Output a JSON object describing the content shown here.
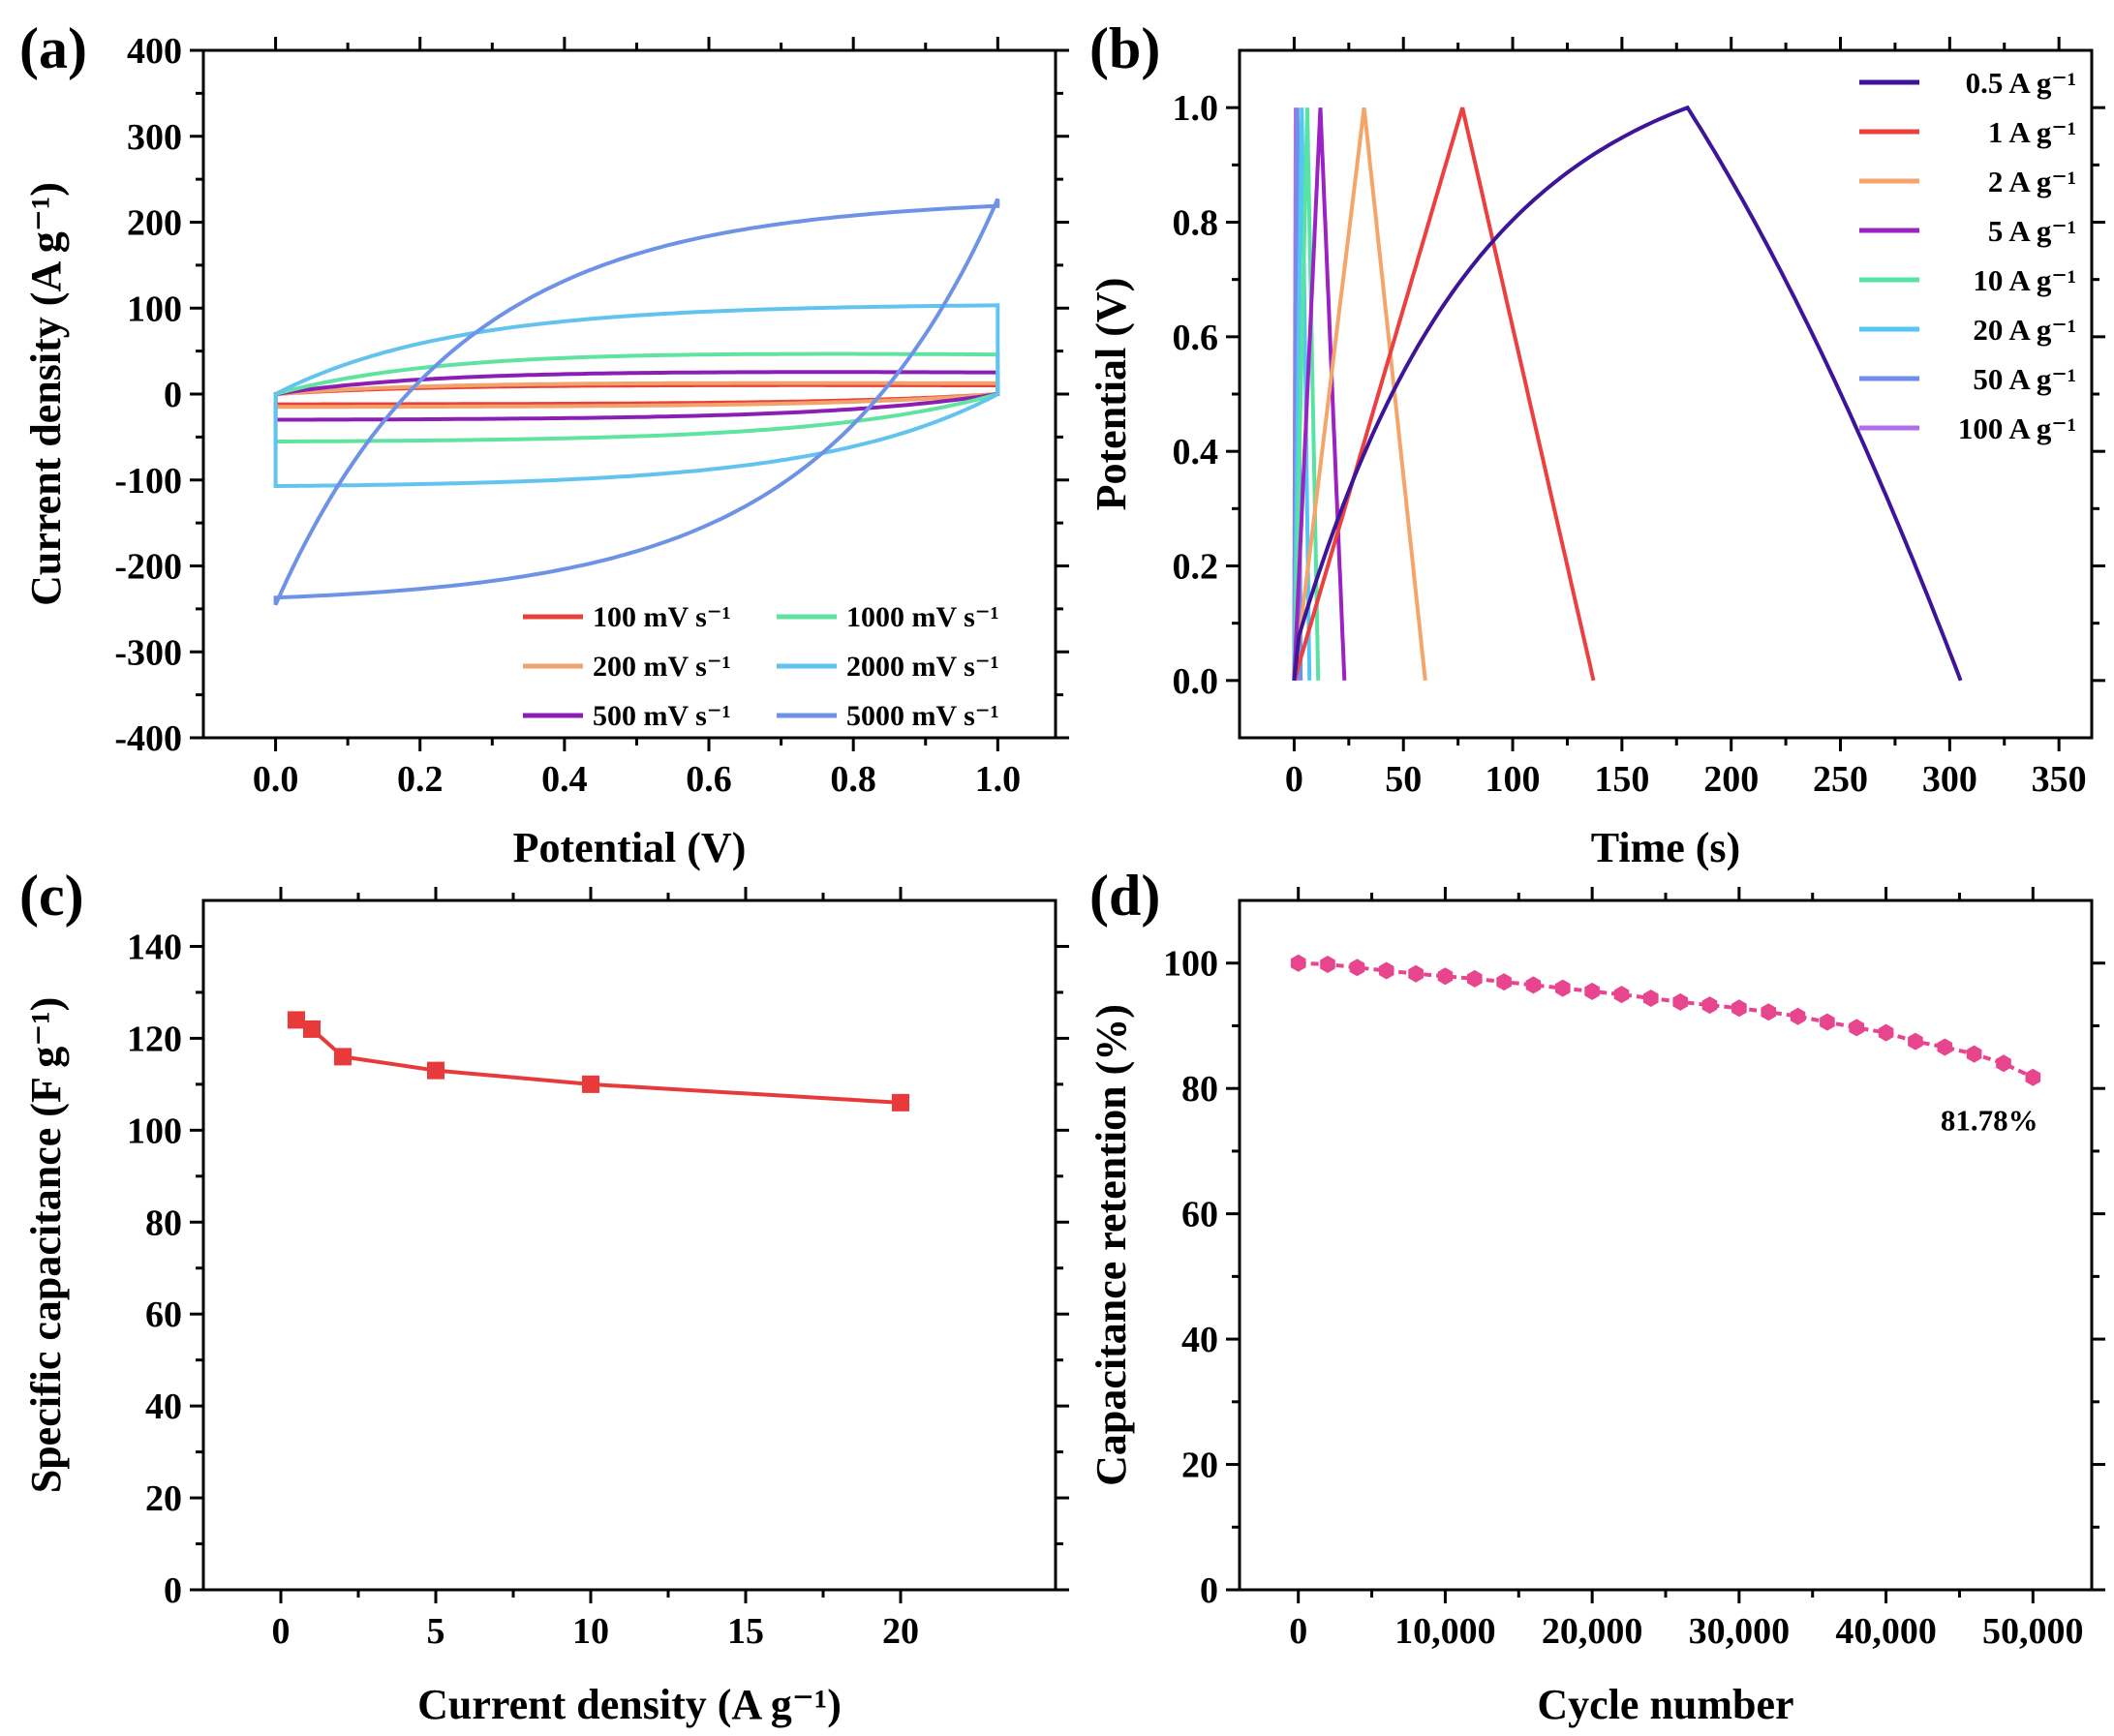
{
  "chart_data": [
    {
      "panel": "(a)",
      "type": "line",
      "subtype": "cyclic voltammetry",
      "xlabel": "Potential (V)",
      "ylabel": "Current density (A g⁻¹)",
      "xlim": [
        -0.1,
        1.08
      ],
      "ylim": [
        -400,
        400
      ],
      "xticks": [
        "0.0",
        "0.2",
        "0.4",
        "0.6",
        "0.8",
        "1.0"
      ],
      "yticks": [
        "400",
        "300",
        "200",
        "100",
        "0",
        "-100",
        "-200",
        "-300",
        "-400"
      ],
      "legend_position": "bottom-right",
      "series": [
        {
          "name": "100 mV s⁻¹",
          "color": "#e8403a",
          "peak_current": 12
        },
        {
          "name": "200 mV s⁻¹",
          "color": "#f0a36b",
          "peak_current": 15
        },
        {
          "name": "500 mV s⁻¹",
          "color": "#8b1fb5",
          "peak_current": 30
        },
        {
          "name": "1000 mV s⁻¹",
          "color": "#5fe3a1",
          "peak_current": 55
        },
        {
          "name": "2000 mV s⁻¹",
          "color": "#62c3ee",
          "peak_current": 105
        },
        {
          "name": "5000 mV s⁻¹",
          "color": "#6e93e6",
          "peak_current": 227
        }
      ]
    },
    {
      "panel": "(b)",
      "type": "line",
      "subtype": "galvanostatic charge-discharge",
      "xlabel": "Time (s)",
      "ylabel": "Potential (V)",
      "xlim": [
        -25,
        365
      ],
      "ylim": [
        -0.1,
        1.1
      ],
      "xticks": [
        "0",
        "50",
        "100",
        "150",
        "200",
        "250",
        "300",
        "350"
      ],
      "yticks": [
        "1.0",
        "0.8",
        "0.6",
        "0.4",
        "0.2",
        "0.0"
      ],
      "legend_position": "top-right",
      "series": [
        {
          "name": "0.5 A g⁻¹",
          "color": "#3d1599",
          "t_charge": 180,
          "t_end": 305
        },
        {
          "name": "1 A g⁻¹",
          "color": "#ec3f3f",
          "t_charge": 77,
          "t_end": 137
        },
        {
          "name": "2 A g⁻¹",
          "color": "#f5a56a",
          "t_charge": 32,
          "t_end": 60
        },
        {
          "name": "5 A g⁻¹",
          "color": "#9c22c4",
          "t_charge": 12,
          "t_end": 23
        },
        {
          "name": "10 A g⁻¹",
          "color": "#56e3a4",
          "t_charge": 6,
          "t_end": 11
        },
        {
          "name": "20 A g⁻¹",
          "color": "#55c6f2",
          "t_charge": 3.5,
          "t_end": 7
        },
        {
          "name": "50 A g⁻¹",
          "color": "#6e8ee8",
          "t_charge": 1.5,
          "t_end": 3
        },
        {
          "name": "100 A g⁻¹",
          "color": "#b06ee8",
          "t_charge": 0.7,
          "t_end": 1.4
        }
      ]
    },
    {
      "panel": "(c)",
      "type": "line",
      "xlabel": "Current density (A g⁻¹)",
      "ylabel": "Specific capacitance (F g⁻¹)",
      "xlim": [
        -2.5,
        25
      ],
      "ylim": [
        0,
        150
      ],
      "xticks": [
        "0",
        "5",
        "10",
        "15",
        "20"
      ],
      "yticks": [
        "140",
        "120",
        "100",
        "80",
        "60",
        "40",
        "20",
        "0"
      ],
      "color": "#e83a3a",
      "x": [
        0.5,
        1,
        2,
        5,
        10,
        20
      ],
      "y": [
        124,
        122,
        116,
        113,
        110,
        106
      ]
    },
    {
      "panel": "(d)",
      "type": "line",
      "xlabel": "Cycle number",
      "ylabel": "Capacitance retention (%)",
      "xlim": [
        -4000,
        54000
      ],
      "ylim": [
        0,
        110
      ],
      "xticks": [
        "0",
        "10,000",
        "20,000",
        "30,000",
        "40,000",
        "50,000"
      ],
      "yticks": [
        "100",
        "80",
        "60",
        "40",
        "20",
        "0"
      ],
      "color": "#e8458f",
      "annotation": "81.78%",
      "x": [
        0,
        2000,
        4000,
        6000,
        8000,
        10000,
        12000,
        14000,
        16000,
        18000,
        20000,
        22000,
        24000,
        26000,
        28000,
        30000,
        32000,
        34000,
        36000,
        38000,
        40000,
        42000,
        44000,
        46000,
        48000,
        50000
      ],
      "y": [
        100,
        99.8,
        99.3,
        98.8,
        98.3,
        97.9,
        97.5,
        97.0,
        96.5,
        96.0,
        95.5,
        95.0,
        94.4,
        93.8,
        93.3,
        92.8,
        92.2,
        91.5,
        90.6,
        89.7,
        88.9,
        87.5,
        86.6,
        85.5,
        84.0,
        81.78
      ]
    }
  ]
}
